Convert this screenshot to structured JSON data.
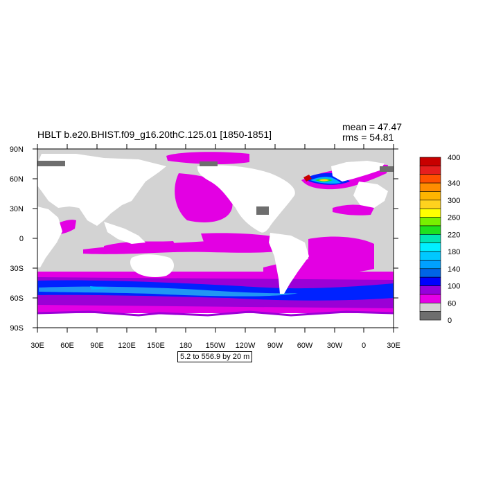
{
  "header": {
    "title": "HBLT b.e20.BHIST.f09_g16.20thC.125.01 [1850-1851]",
    "mean": "mean = 47.47",
    "rms": "rms = 54.81"
  },
  "caption": "5.2 to 556.9 by 20 m",
  "map": {
    "lat_labels": [
      "90N",
      "60N",
      "30N",
      "0",
      "30S",
      "60S",
      "90S"
    ],
    "lon_labels": [
      "30E",
      "60E",
      "90E",
      "120E",
      "150E",
      "180",
      "150W",
      "120W",
      "90W",
      "60W",
      "30W",
      "0",
      "30E"
    ],
    "lat_range": [
      -90,
      90
    ],
    "lon_range": [
      30,
      390
    ],
    "colors": {
      "land": "#ffffff",
      "low": "#d3d3d3",
      "magenta": "#e300e3",
      "purple": "#9b00d6",
      "blue": "#0022ff",
      "sky": "#2196f3",
      "deep": "#00b4ff"
    }
  },
  "colorbar": {
    "labels": [
      "400",
      "340",
      "300",
      "260",
      "220",
      "180",
      "140",
      "100",
      "60",
      "0"
    ],
    "colors": [
      "#c80000",
      "#e61e1e",
      "#ff5000",
      "#ff8c00",
      "#ffb400",
      "#ffd21e",
      "#ffff00",
      "#78f000",
      "#1ee11e",
      "#00e6b4",
      "#00f0ff",
      "#00c8ff",
      "#00a0ff",
      "#0064e6",
      "#0000ff",
      "#9600dc",
      "#e600e6",
      "#d3d3d3",
      "#6e6e6e"
    ]
  }
}
